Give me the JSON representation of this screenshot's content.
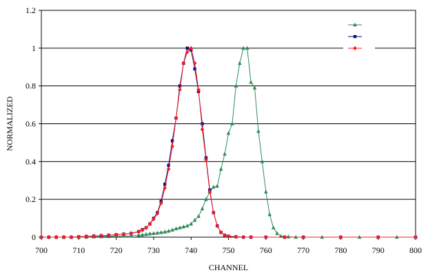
{
  "chart_data": {
    "type": "line",
    "xlabel": "CHANNEL",
    "ylabel": "NORMALIZED",
    "xlim": [
      700,
      800
    ],
    "ylim": [
      0,
      1.2
    ],
    "xticks": [
      "700",
      "710",
      "720",
      "730",
      "740",
      "750",
      "760",
      "770",
      "780",
      "790",
      "800"
    ],
    "yticks": [
      "0",
      "0.2",
      "0.4",
      "0.6",
      "0.8",
      "1",
      "1.2"
    ],
    "grid": "horizontal",
    "legend": {
      "placement": "top-right",
      "labels_visible": false
    },
    "series": [
      {
        "color": "#2e8b57",
        "marker": "triangle",
        "x": [
          700,
          702,
          704,
          706,
          708,
          710,
          712,
          714,
          716,
          718,
          720,
          722,
          724,
          726,
          727,
          728,
          729,
          730,
          731,
          732,
          733,
          734,
          735,
          736,
          737,
          738,
          739,
          740,
          741,
          742,
          743,
          744,
          745,
          746,
          747,
          748,
          749,
          750,
          751,
          752,
          753,
          754,
          755,
          756,
          757,
          758,
          759,
          760,
          761,
          762,
          763,
          764,
          766,
          768,
          770,
          775,
          780,
          785,
          790,
          795,
          800
        ],
        "y": [
          0,
          0,
          0,
          0,
          0,
          0,
          0,
          0.002,
          0.003,
          0.004,
          0.005,
          0.006,
          0.007,
          0.01,
          0.012,
          0.015,
          0.018,
          0.02,
          0.022,
          0.025,
          0.028,
          0.032,
          0.038,
          0.045,
          0.05,
          0.055,
          0.06,
          0.07,
          0.09,
          0.11,
          0.15,
          0.2,
          0.24,
          0.265,
          0.27,
          0.36,
          0.44,
          0.55,
          0.6,
          0.8,
          0.92,
          1.0,
          1.0,
          0.82,
          0.79,
          0.56,
          0.4,
          0.24,
          0.12,
          0.05,
          0.02,
          0.005,
          0.002,
          0,
          0,
          0,
          0,
          0,
          0,
          0,
          0
        ]
      },
      {
        "color": "#0a0a80",
        "marker": "square",
        "x": [
          700,
          702,
          704,
          706,
          708,
          710,
          712,
          714,
          716,
          718,
          720,
          722,
          724,
          726,
          727,
          728,
          729,
          730,
          731,
          732,
          733,
          734,
          735,
          736,
          737,
          738,
          739,
          740,
          741,
          742,
          743,
          744,
          745,
          746,
          747,
          748,
          749,
          750,
          752,
          754,
          756,
          760,
          765,
          770,
          780,
          790,
          800
        ],
        "y": [
          0,
          0,
          0,
          0,
          0,
          0.002,
          0.004,
          0.006,
          0.008,
          0.01,
          0.013,
          0.016,
          0.02,
          0.03,
          0.04,
          0.05,
          0.07,
          0.1,
          0.13,
          0.19,
          0.28,
          0.38,
          0.51,
          0.63,
          0.8,
          0.92,
          1.0,
          0.99,
          0.89,
          0.77,
          0.6,
          0.42,
          0.25,
          0.13,
          0.06,
          0.025,
          0.01,
          0.005,
          0.002,
          0,
          0,
          0,
          0,
          0,
          0,
          0,
          0
        ]
      },
      {
        "color": "#ff1a1a",
        "marker": "diamond",
        "x": [
          700,
          702,
          704,
          706,
          708,
          710,
          712,
          714,
          716,
          718,
          720,
          722,
          724,
          726,
          727,
          728,
          729,
          730,
          731,
          732,
          733,
          734,
          735,
          736,
          737,
          738,
          739,
          740,
          741,
          742,
          743,
          744,
          745,
          746,
          747,
          748,
          749,
          750,
          752,
          754,
          756,
          760,
          765,
          770,
          780,
          790,
          800
        ],
        "y": [
          0,
          0,
          0,
          0,
          0,
          0.002,
          0.004,
          0.006,
          0.008,
          0.01,
          0.012,
          0.016,
          0.02,
          0.028,
          0.037,
          0.05,
          0.07,
          0.095,
          0.125,
          0.18,
          0.26,
          0.36,
          0.48,
          0.63,
          0.78,
          0.92,
          0.98,
          1.0,
          0.92,
          0.78,
          0.57,
          0.41,
          0.24,
          0.13,
          0.06,
          0.025,
          0.01,
          0.005,
          0.002,
          0,
          0,
          0,
          0,
          0,
          0,
          0,
          0
        ]
      }
    ]
  }
}
